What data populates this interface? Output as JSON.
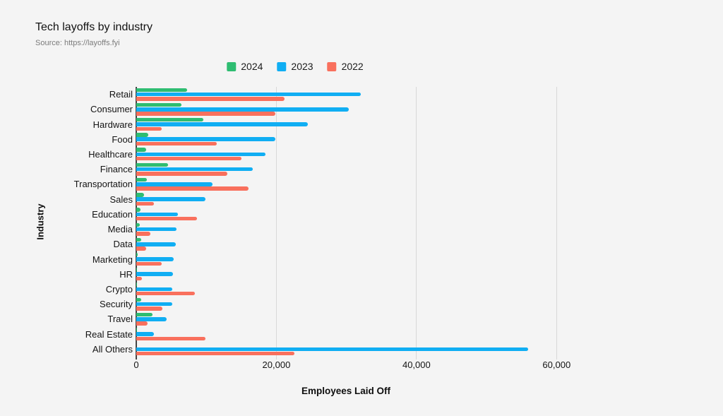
{
  "page": {
    "background": "#f4f4f4"
  },
  "header": {
    "title": "Tech layoffs by industry",
    "source": "Source: https://layoffs.fyi"
  },
  "legend": {
    "items": [
      {
        "label": "2024",
        "color": "#2ebd71"
      },
      {
        "label": "2023",
        "color": "#10aef3"
      },
      {
        "label": "2022",
        "color": "#f9705d"
      }
    ]
  },
  "chart_data": {
    "type": "bar",
    "orientation": "horizontal",
    "title": "Tech layoffs by industry",
    "xlabel": "Employees Laid Off",
    "ylabel": "Industry",
    "xlim": [
      0,
      60000
    ],
    "xticks": [
      {
        "value": 0,
        "label": "0"
      },
      {
        "value": 20000,
        "label": "20,000"
      },
      {
        "value": 40000,
        "label": "40,000"
      },
      {
        "value": 60000,
        "label": "60,000"
      }
    ],
    "grid": "vertical",
    "legend_position": "top-center",
    "categories": [
      "Retail",
      "Consumer",
      "Hardware",
      "Food",
      "Healthcare",
      "Finance",
      "Transportation",
      "Sales",
      "Education",
      "Media",
      "Data",
      "Marketing",
      "HR",
      "Crypto",
      "Security",
      "Travel",
      "Real Estate",
      "All Others"
    ],
    "series": [
      {
        "name": "2024",
        "color": "#2ebd71",
        "values": [
          7300,
          6500,
          9600,
          1700,
          1400,
          4500,
          1500,
          1100,
          650,
          500,
          700,
          200,
          150,
          150,
          700,
          2300,
          100,
          0
        ]
      },
      {
        "name": "2023",
        "color": "#10aef3",
        "values": [
          32100,
          30300,
          24500,
          19900,
          18400,
          16600,
          10900,
          9900,
          5900,
          5700,
          5600,
          5300,
          5200,
          5100,
          5100,
          4300,
          2500,
          55900
        ]
      },
      {
        "name": "2022",
        "color": "#f9705d",
        "values": [
          21200,
          19900,
          3650,
          11500,
          15000,
          13000,
          16000,
          2550,
          8700,
          2000,
          1400,
          3650,
          800,
          8350,
          3750,
          1600,
          9900,
          22600
        ]
      }
    ]
  }
}
